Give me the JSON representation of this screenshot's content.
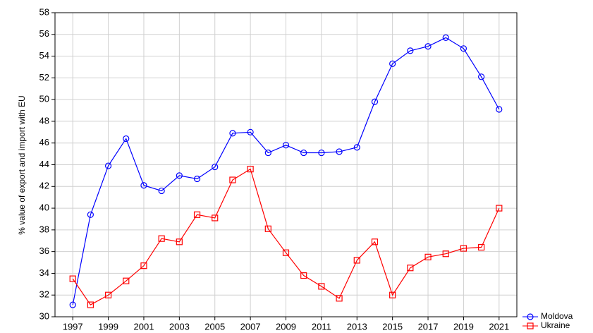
{
  "chart_data": {
    "type": "line",
    "y_label": "% value of export and import with EU",
    "x": [
      1997,
      1998,
      1999,
      2000,
      2001,
      2002,
      2003,
      2004,
      2005,
      2006,
      2007,
      2008,
      2009,
      2010,
      2011,
      2012,
      2013,
      2014,
      2015,
      2016,
      2017,
      2018,
      2019,
      2020,
      2021
    ],
    "series": [
      {
        "name": "Moldova",
        "color": "#0000ff",
        "marker": "circle",
        "values": [
          31.1,
          39.4,
          43.9,
          46.4,
          42.1,
          41.6,
          43.0,
          42.7,
          43.8,
          46.9,
          47.0,
          45.1,
          45.8,
          45.1,
          45.1,
          45.2,
          45.6,
          49.8,
          53.3,
          54.5,
          54.9,
          55.7,
          54.7,
          52.1,
          49.1
        ]
      },
      {
        "name": "Ukraine",
        "color": "#ff0000",
        "marker": "square",
        "values": [
          33.5,
          31.1,
          32.0,
          33.3,
          34.7,
          37.2,
          36.9,
          39.4,
          39.1,
          42.6,
          43.6,
          38.1,
          35.9,
          33.8,
          32.8,
          31.7,
          35.2,
          36.9,
          32.0,
          34.5,
          35.5,
          35.8,
          36.3,
          36.4,
          40.0
        ]
      }
    ],
    "xlim": [
      1996,
      2022
    ],
    "xticks": [
      1997,
      1999,
      2001,
      2003,
      2005,
      2007,
      2009,
      2011,
      2013,
      2015,
      2017,
      2019,
      2021
    ],
    "ylim": [
      30,
      58
    ],
    "yticks": [
      30,
      32,
      34,
      36,
      38,
      40,
      42,
      44,
      46,
      48,
      50,
      52,
      54,
      56,
      58
    ],
    "grid": true,
    "legend": "bottom-right"
  }
}
